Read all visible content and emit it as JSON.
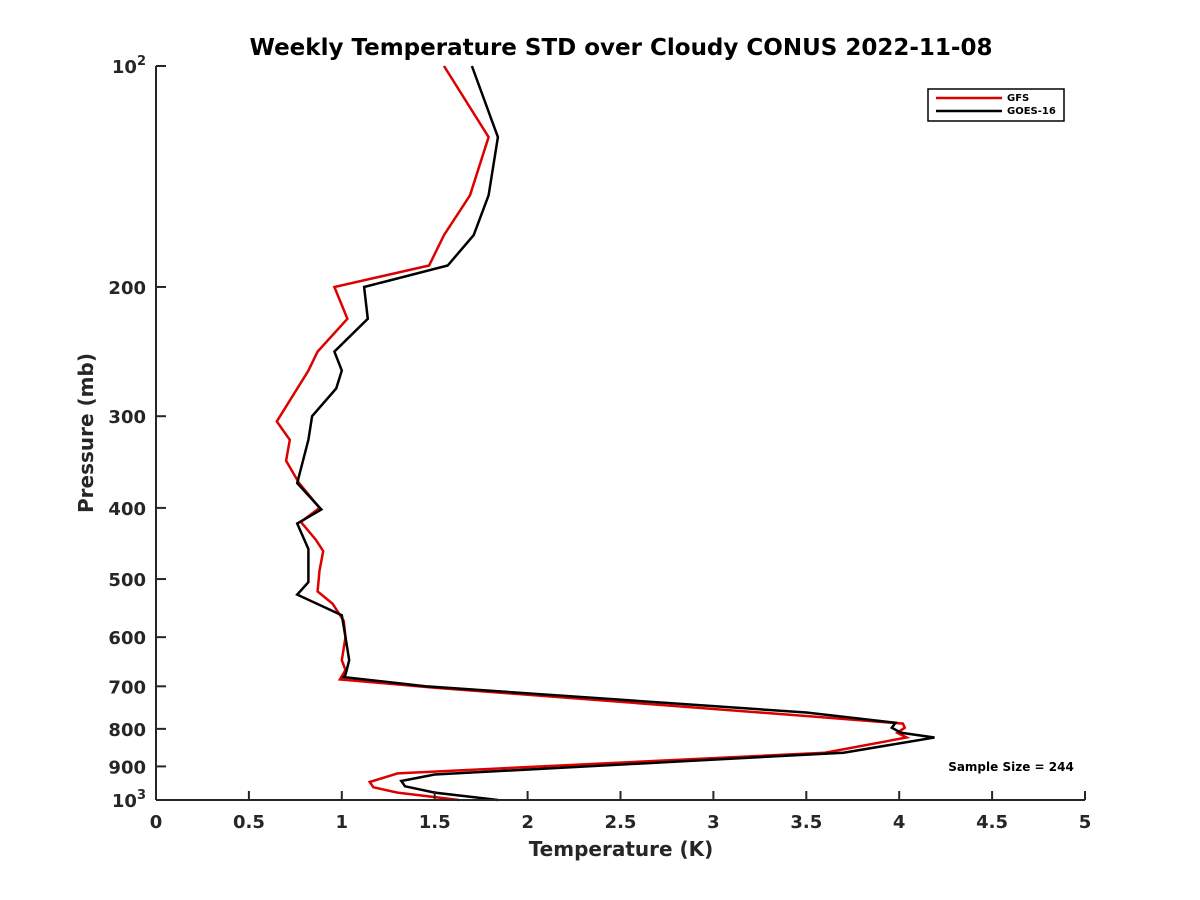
{
  "chart_data": {
    "type": "line",
    "title": "Weekly Temperature STD over Cloudy CONUS 2022-11-08",
    "xlabel": "Temperature (K)",
    "ylabel": "Pressure (mb)",
    "xlim": [
      0,
      5
    ],
    "ylim": [
      100,
      1000
    ],
    "y_scale": "log",
    "y_reversed": true,
    "x_ticks": [
      "0",
      "0.5",
      "1",
      "1.5",
      "2",
      "2.5",
      "3",
      "3.5",
      "4",
      "4.5",
      "5"
    ],
    "y_ticks": [
      {
        "value": 100,
        "base": "10",
        "exp": "2"
      },
      {
        "value": 200,
        "label": "200"
      },
      {
        "value": 300,
        "label": "300"
      },
      {
        "value": 400,
        "label": "400"
      },
      {
        "value": 500,
        "label": "500"
      },
      {
        "value": 600,
        "label": "600"
      },
      {
        "value": 700,
        "label": "700"
      },
      {
        "value": 800,
        "label": "800"
      },
      {
        "value": 900,
        "label": "900"
      },
      {
        "value": 1000,
        "base": "10",
        "exp": "3"
      }
    ],
    "grid": false,
    "legend_position": "top-right",
    "annotation": "Sample Size = 244",
    "series": [
      {
        "name": "GFS",
        "color": "#dd0000",
        "points": [
          [
            1.55,
            100
          ],
          [
            1.79,
            125
          ],
          [
            1.69,
            150
          ],
          [
            1.55,
            170
          ],
          [
            1.47,
            187
          ],
          [
            0.96,
            200
          ],
          [
            1.03,
            221
          ],
          [
            0.87,
            245
          ],
          [
            0.82,
            260
          ],
          [
            0.65,
            305
          ],
          [
            0.72,
            323
          ],
          [
            0.7,
            345
          ],
          [
            0.77,
            370
          ],
          [
            0.88,
            400
          ],
          [
            0.78,
            418
          ],
          [
            0.86,
            442
          ],
          [
            0.9,
            458
          ],
          [
            0.88,
            487
          ],
          [
            0.87,
            520
          ],
          [
            0.95,
            540
          ],
          [
            1.01,
            570
          ],
          [
            1.02,
            600
          ],
          [
            1.0,
            645
          ],
          [
            1.02,
            665
          ],
          [
            0.99,
            685
          ],
          [
            1.5,
            703
          ],
          [
            3.55,
            770
          ],
          [
            4.02,
            787
          ],
          [
            4.03,
            797
          ],
          [
            3.99,
            810
          ],
          [
            4.04,
            822
          ],
          [
            3.6,
            862
          ],
          [
            1.3,
            920
          ],
          [
            1.15,
            945
          ],
          [
            1.17,
            961
          ],
          [
            1.3,
            977
          ],
          [
            1.63,
            1000
          ]
        ]
      },
      {
        "name": "GOES-16",
        "color": "#000000",
        "points": [
          [
            1.7,
            100
          ],
          [
            1.84,
            125
          ],
          [
            1.79,
            150
          ],
          [
            1.71,
            170
          ],
          [
            1.57,
            187
          ],
          [
            1.12,
            200
          ],
          [
            1.14,
            221
          ],
          [
            0.96,
            245
          ],
          [
            1.0,
            260
          ],
          [
            0.97,
            275
          ],
          [
            0.84,
            300
          ],
          [
            0.82,
            323
          ],
          [
            0.76,
            370
          ],
          [
            0.89,
            402
          ],
          [
            0.76,
            420
          ],
          [
            0.82,
            455
          ],
          [
            0.82,
            505
          ],
          [
            0.76,
            525
          ],
          [
            1.0,
            560
          ],
          [
            1.02,
            600
          ],
          [
            1.04,
            645
          ],
          [
            1.02,
            675
          ],
          [
            1.01,
            680
          ],
          [
            1.45,
            700
          ],
          [
            3.5,
            760
          ],
          [
            3.98,
            785
          ],
          [
            3.96,
            797
          ],
          [
            4.01,
            810
          ],
          [
            4.19,
            822
          ],
          [
            3.7,
            862
          ],
          [
            1.5,
            923
          ],
          [
            1.32,
            942
          ],
          [
            1.34,
            958
          ],
          [
            1.5,
            977
          ],
          [
            1.84,
            1000
          ]
        ]
      }
    ]
  }
}
